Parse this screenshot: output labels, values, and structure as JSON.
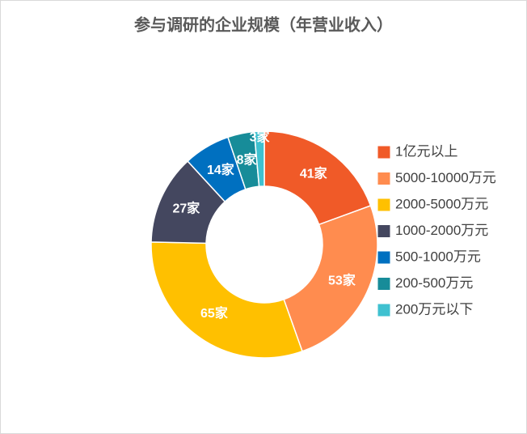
{
  "chart_data": {
    "type": "donut",
    "title": "参与调研的企业规模（年营业收入）",
    "categories": [
      "1亿元以上",
      "5000-10000万元",
      "2000-5000万元",
      "1000-2000万元",
      "500-1000万元",
      "200-500万元",
      "200万元以下"
    ],
    "values": [
      41,
      53,
      65,
      27,
      14,
      8,
      3
    ],
    "value_labels": [
      "41家",
      "53家",
      "65家",
      "27家",
      "14家",
      "8家",
      "3家"
    ],
    "colors": [
      "#f05a28",
      "#ff8c4f",
      "#ffc000",
      "#44475f",
      "#0070c0",
      "#178c99",
      "#3fc1d0"
    ],
    "legend": "right"
  }
}
